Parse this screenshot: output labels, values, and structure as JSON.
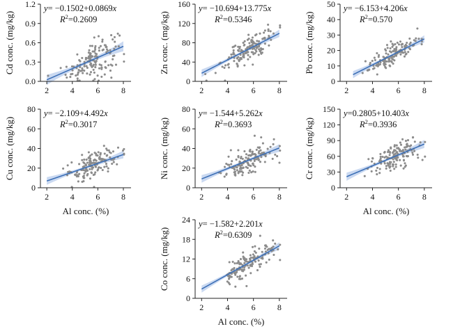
{
  "colors": {
    "points": "#8c8c8c",
    "fit_line": "#3c6fb6",
    "confidence_band": "#9fb9e6"
  },
  "chart_data": [
    {
      "id": "cd",
      "type": "scatter",
      "ylabel": "Cd conc. (mg/kg)",
      "xlabel": "",
      "equation": "y= −0.1502+0.0869x",
      "r2_label": "R²=0.2609",
      "intercept": -0.1502,
      "slope": 0.0869,
      "xlim": [
        1.5,
        8.6
      ],
      "ylim": [
        0,
        1.2
      ],
      "xticks": [
        2,
        4,
        6,
        8
      ],
      "yticks": [
        0.0,
        0.3,
        0.6,
        0.9,
        1.2
      ],
      "ytick_labels": [
        "0.0",
        "0.3",
        "0.6",
        "0.9",
        "1.2"
      ],
      "line_range": [
        2,
        8
      ],
      "band_width": 0.05,
      "scatter_sd": 0.15
    },
    {
      "id": "zn",
      "type": "scatter",
      "ylabel": "Zn conc. (mg/kg)",
      "xlabel": "",
      "equation": "y= −10.694+13.775x",
      "r2_label": "R²=0.5346",
      "intercept": -10.694,
      "slope": 13.775,
      "xlim": [
        1.5,
        8.6
      ],
      "ylim": [
        0,
        160
      ],
      "xticks": [
        2,
        4,
        6,
        8
      ],
      "yticks": [
        0,
        40,
        80,
        120,
        160
      ],
      "ytick_labels": [
        "0",
        "40",
        "80",
        "120",
        "160"
      ],
      "line_range": [
        2,
        8
      ],
      "band_width": 5,
      "scatter_sd": 14
    },
    {
      "id": "pb",
      "type": "scatter",
      "ylabel": "Pb conc. (mg/kg)",
      "xlabel": "",
      "equation": "y= −6.153+4.206x",
      "r2_label": "R²=0.570",
      "intercept": -6.153,
      "slope": 4.206,
      "xlim": [
        1.5,
        8.6
      ],
      "ylim": [
        0,
        50
      ],
      "xticks": [
        2,
        4,
        6,
        8
      ],
      "yticks": [
        0,
        10,
        20,
        30,
        40,
        50
      ],
      "ytick_labels": [
        "0",
        "10",
        "20",
        "30",
        "40",
        "50"
      ],
      "line_range": [
        2.5,
        8
      ],
      "band_width": 1.5,
      "scatter_sd": 3.5
    },
    {
      "id": "cu",
      "type": "scatter",
      "ylabel": "Cu conc. (mg/kg)",
      "xlabel": "Al conc. (%)",
      "equation": "y= −2.109+4.492x",
      "r2_label": "R²=0.3017",
      "intercept": -2.109,
      "slope": 4.492,
      "xlim": [
        1.5,
        8.6
      ],
      "ylim": [
        0,
        80
      ],
      "xticks": [
        2,
        4,
        6,
        8
      ],
      "yticks": [
        0,
        20,
        40,
        60,
        80
      ],
      "ytick_labels": [
        "0",
        "20",
        "40",
        "60",
        "80"
      ],
      "line_range": [
        2,
        8
      ],
      "band_width": 2.5,
      "scatter_sd": 7
    },
    {
      "id": "ni",
      "type": "scatter",
      "ylabel": "Ni conc. (mg/kg)",
      "xlabel": "",
      "equation": "y= −1.544+5.262x",
      "r2_label": "R²=0.3693",
      "intercept": -1.544,
      "slope": 5.262,
      "xlim": [
        1.5,
        8.6
      ],
      "ylim": [
        0,
        80
      ],
      "xticks": [
        2,
        4,
        6,
        8
      ],
      "yticks": [
        0,
        20,
        40,
        60,
        80
      ],
      "ytick_labels": [
        "0",
        "20",
        "40",
        "60",
        "80"
      ],
      "line_range": [
        2,
        8
      ],
      "band_width": 2.5,
      "scatter_sd": 7
    },
    {
      "id": "cr",
      "type": "scatter",
      "ylabel": "Cr conc. (mg/kg)",
      "xlabel": "Al conc. (%)",
      "equation": "y=0.2805+10.403x",
      "r2_label": "R²=0.3936",
      "intercept": 0.2805,
      "slope": 10.403,
      "xlim": [
        1.5,
        8.6
      ],
      "ylim": [
        0,
        150
      ],
      "xticks": [
        2,
        4,
        6,
        8
      ],
      "yticks": [
        0,
        30,
        60,
        90,
        120,
        150
      ],
      "ytick_labels": [
        "0",
        "30",
        "60",
        "90",
        "120",
        "150"
      ],
      "line_range": [
        2,
        8
      ],
      "band_width": 5,
      "scatter_sd": 13
    },
    {
      "id": "co",
      "type": "scatter",
      "ylabel": "Co conc. (mg/kg)",
      "xlabel": "Al conc. (%)",
      "equation": "y= −1.582+2.201x",
      "r2_label": "R²=0.6309",
      "intercept": -1.582,
      "slope": 2.201,
      "xlim": [
        1.5,
        8.6
      ],
      "ylim": [
        0,
        24
      ],
      "xticks": [
        2,
        4,
        6,
        8
      ],
      "yticks": [
        0,
        6,
        12,
        18,
        24
      ],
      "ytick_labels": [
        "0",
        "6",
        "12",
        "18",
        "24"
      ],
      "line_range": [
        2,
        8
      ],
      "band_width": 0.7,
      "scatter_sd": 1.6
    }
  ]
}
